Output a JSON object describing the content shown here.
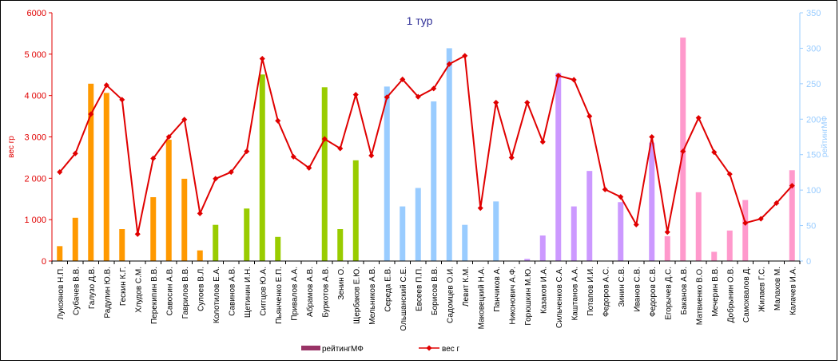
{
  "chart_data": {
    "type": "bar",
    "title": "1 тур",
    "ylabel": "вес гр",
    "y2label": "рейтингМФ",
    "ylim": [
      0,
      6000
    ],
    "y2lim": [
      0,
      350
    ],
    "yticks": [
      "0",
      "1 000",
      "2 000",
      "3 000",
      "4 000",
      "5 000",
      "6000"
    ],
    "y2ticks": [
      "0",
      "50",
      "100",
      "150",
      "200",
      "250",
      "300",
      "350"
    ],
    "legend_position": "bottom",
    "categories": [
      "Лукоянов Н.П.",
      "Субачев В.В.",
      "Галузо Д.В.",
      "Радулин Ю.В.",
      "Гескин К.Г.",
      "Хлудов С.М.",
      "Перекипин В.В.",
      "Савосин А.В.",
      "Гаврилов В.В.",
      "Сулоев В.Л.",
      "Колотилов Е.А.",
      "Савинов А.В.",
      "Щетинин И.Н.",
      "Сиггцов Ю.А.",
      "Пьянченко Е.П.",
      "Привалов А.А.",
      "Абрамов А.В.",
      "Буркотов А.В.",
      "Зенин О.",
      "Щербаков Е.Ю.",
      "Мельников А.В.",
      "Середа Е.В.",
      "Ольшанский С.Е.",
      "Евсеев П.П.",
      "Борисов В.В.",
      "Садомцев О.И.",
      "Левит К.М.",
      "Маковецкий Н.А.",
      "Панчиков А.",
      "Никонович А.Ф.",
      "Горюшкин М.Ю.",
      "Казаков И.А.",
      "Сильченков С.А.",
      "Каштанов А.А.",
      "Потапов И.И.",
      "Федоров А.С.",
      "Зинин С.В.",
      "Иванов С.В.",
      "Федоров С.В.",
      "Егорычев Д.С.",
      "Баканов А.В.",
      "Матвиенко В.О.",
      "Мечерин В.В.",
      "Добрынин О.В.",
      "Самохвалов Д.",
      "Жилаев Г.С.",
      "Малахов М.",
      "Калачев И.А."
    ],
    "bar_colors": [
      "#ff9900",
      "#ff9900",
      "#ff9900",
      "#ff9900",
      "#ff9900",
      "#ff9900",
      "#ff9900",
      "#ff9900",
      "#ff9900",
      "#ff9900",
      "#99cc00",
      "#99cc00",
      "#99cc00",
      "#99cc00",
      "#99cc00",
      "#99cc00",
      "#99cc00",
      "#99cc00",
      "#99cc00",
      "#99cc00",
      "#99ccff",
      "#99ccff",
      "#99ccff",
      "#99ccff",
      "#99ccff",
      "#99ccff",
      "#99ccff",
      "#99ccff",
      "#99ccff",
      "#99ccff",
      "#cc99ff",
      "#cc99ff",
      "#cc99ff",
      "#cc99ff",
      "#cc99ff",
      "#cc99ff",
      "#cc99ff",
      "#cc99ff",
      "#cc99ff",
      "#ff99cc",
      "#ff99cc",
      "#ff99cc",
      "#ff99cc",
      "#ff99cc",
      "#ff99cc",
      "#ff99cc",
      "#ff99cc",
      "#ff99cc"
    ],
    "line_color": "#e00000",
    "axis_colors": {
      "left": "#e00000",
      "right": "#99ccff",
      "title": "#333399"
    },
    "series": [
      {
        "name": "рейтингМФ",
        "axis": "right",
        "kind": "bar",
        "legend_color": "#993366",
        "values": [
          21,
          61,
          250,
          237,
          45,
          0,
          90,
          171,
          116,
          15,
          51,
          0,
          74,
          263,
          34,
          0,
          0,
          245,
          45,
          142,
          0,
          246,
          77,
          103,
          225,
          300,
          51,
          0,
          84,
          0,
          3,
          36,
          265,
          77,
          127,
          0,
          83,
          0,
          167,
          35,
          315,
          97,
          13,
          43,
          86,
          0,
          0,
          128
        ]
      },
      {
        "name": "вес г",
        "axis": "left",
        "kind": "line",
        "values": [
          2150,
          2600,
          3550,
          4250,
          3900,
          650,
          2480,
          3000,
          3420,
          1150,
          1990,
          2150,
          2650,
          4890,
          3390,
          2520,
          2250,
          2950,
          2720,
          4020,
          2550,
          3960,
          4390,
          3970,
          4170,
          4760,
          4960,
          1280,
          3830,
          2500,
          3830,
          2880,
          4480,
          4380,
          3500,
          1730,
          1550,
          880,
          3000,
          700,
          2650,
          3460,
          2630,
          2100,
          920,
          1020,
          1400,
          1820
        ]
      }
    ]
  }
}
